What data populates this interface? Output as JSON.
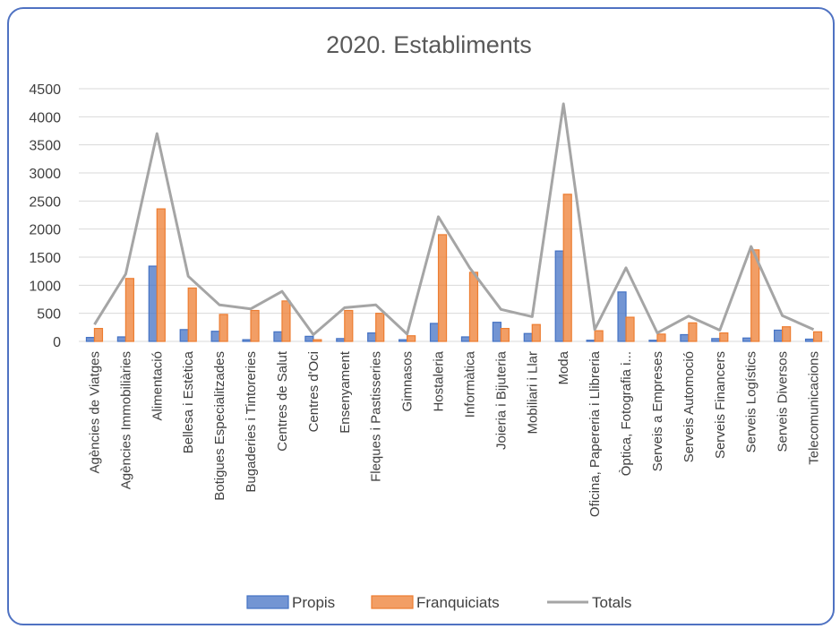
{
  "chart_data": {
    "type": "bar",
    "title": "2020. Establiments",
    "xlabel": "",
    "ylabel": "",
    "ylim": [
      0,
      4500
    ],
    "yticks": [
      0,
      500,
      1000,
      1500,
      2000,
      2500,
      3000,
      3500,
      4000,
      4500
    ],
    "grid": true,
    "legend_position": "bottom",
    "categories": [
      "Agències de Viatges",
      "Agències Immobiliàries",
      "Alimentació",
      "Bellesa i Estètica",
      "Botigues Especialitzades",
      "Bugaderies i Tintoreries",
      "Centres de Salut",
      "Centres d'Oci",
      "Ensenyament",
      "Fleques i Pastisseries",
      "Gimnasos",
      "Hostaleria",
      "Informàtica",
      "Joieria i Bijuteria",
      "Mobiliari i Llar",
      "Moda",
      "Oficina, Papereria i Llibreria",
      "Òptica, Fotografia i...",
      "Serveis a Empreses",
      "Serveis Automoció",
      "Serveis Financers",
      "Serveis Logístics",
      "Serveis Diversos",
      "Telecomunicacions"
    ],
    "series": [
      {
        "name": "Propis",
        "kind": "bar",
        "color": "#4472c4",
        "values": [
          70,
          80,
          1340,
          210,
          180,
          30,
          170,
          90,
          50,
          150,
          30,
          320,
          80,
          340,
          140,
          1610,
          20,
          880,
          20,
          120,
          50,
          60,
          200,
          40
        ]
      },
      {
        "name": "Franquiciats",
        "kind": "bar",
        "color": "#ed7d31",
        "values": [
          230,
          1120,
          2360,
          950,
          480,
          550,
          720,
          30,
          550,
          500,
          100,
          1900,
          1230,
          230,
          300,
          2620,
          190,
          430,
          130,
          330,
          150,
          1630,
          260,
          170
        ]
      },
      {
        "name": "Totals",
        "kind": "line",
        "color": "#a5a5a5",
        "values": [
          300,
          1200,
          3700,
          1160,
          650,
          580,
          890,
          120,
          600,
          650,
          130,
          2220,
          1310,
          570,
          440,
          4230,
          210,
          1310,
          150,
          450,
          200,
          1690,
          460,
          210
        ]
      }
    ]
  }
}
